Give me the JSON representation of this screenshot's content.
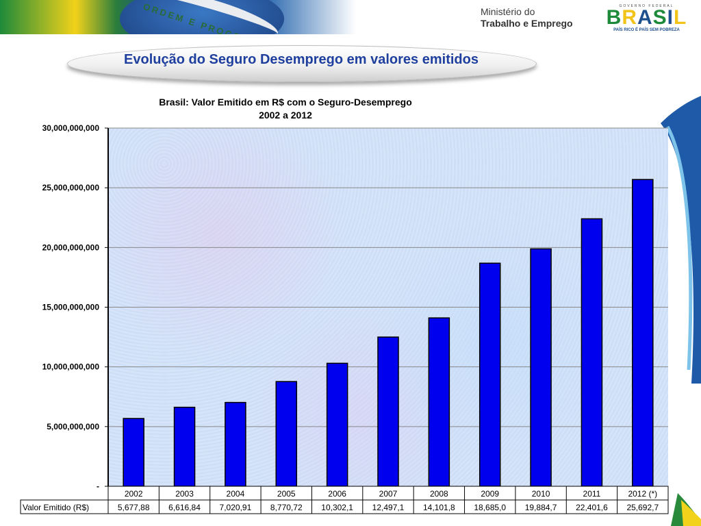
{
  "header": {
    "motto": "ORDEM E PROGRESSO",
    "ministry_line1": "Ministério do",
    "ministry_line2": "Trabalho e Emprego",
    "gov_small": "GOVERNO FEDERAL",
    "gov_big": "BRASIL",
    "gov_slogan": "PAÍS RICO É PAÍS SEM POBREZA"
  },
  "page_title": "Evolução do Seguro Desemprego em valores emitidos",
  "colors": {
    "bar": "#0000ee",
    "bar_stroke": "#000000",
    "title": "#1f3f9e",
    "grid": "#888888"
  },
  "chart_data": {
    "type": "bar",
    "title": "Brasil: Valor Emitido em R$ com o Seguro-Desemprego",
    "subtitle": "2002 a 2012",
    "categories": [
      "2002",
      "2003",
      "2004",
      "2005",
      "2006",
      "2007",
      "2008",
      "2009",
      "2010",
      "2011",
      "2012 (*)"
    ],
    "series": [
      {
        "name": "Valor Emitido (R$)",
        "values": [
          5677880000,
          6616840000,
          7020910000,
          8770720000,
          10302100000,
          12497100000,
          14101800000,
          18685000000,
          19884700000,
          22401600000,
          25692700000
        ],
        "table_labels": [
          "5,677,88",
          "6,616,84",
          "7,020,91",
          "8,770,72",
          "10,302,1",
          "12,497,1",
          "14,101,8",
          "18,685,0",
          "19,884,7",
          "22,401,6",
          "25,692,7"
        ]
      }
    ],
    "ylim": [
      0,
      30000000000
    ],
    "yticks": [
      0,
      5000000000,
      10000000000,
      15000000000,
      20000000000,
      25000000000,
      30000000000
    ],
    "ytick_labels": [
      "-",
      "5,000,000,000",
      "10,000,000,000",
      "15,000,000,000",
      "20,000,000,000",
      "25,000,000,000",
      "30,000,000,000"
    ],
    "grid": true,
    "legend": "data-table"
  }
}
